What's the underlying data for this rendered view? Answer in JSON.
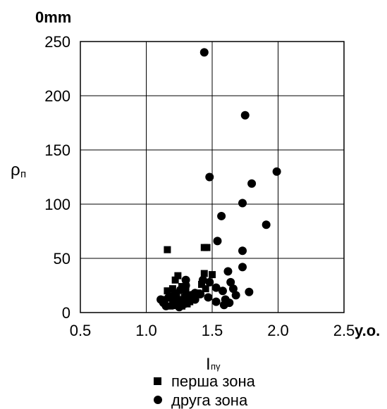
{
  "chart_data": {
    "type": "scatter",
    "top_label": "0mm",
    "x_unit": "y.o.",
    "ylabel_main": "ρ",
    "ylabel_sub": "п",
    "xlabel_main": "I",
    "xlabel_sub": "пγ",
    "xlim": [
      0.5,
      2.5
    ],
    "ylim": [
      0,
      250
    ],
    "x_ticks": [
      "0.5",
      "1.0",
      "1.5",
      "2.0",
      "2.5"
    ],
    "y_ticks": [
      "0",
      "50",
      "100",
      "150",
      "200",
      "250"
    ],
    "grid": true,
    "legend_position": "bottom",
    "series": [
      {
        "name": "перша зона",
        "marker": "square",
        "points": [
          [
            1.16,
            58
          ],
          [
            1.44,
            60
          ],
          [
            1.46,
            60
          ],
          [
            1.44,
            36
          ],
          [
            1.5,
            35
          ],
          [
            1.22,
            30
          ],
          [
            1.24,
            34
          ],
          [
            1.16,
            20
          ],
          [
            1.2,
            22
          ],
          [
            1.23,
            18
          ],
          [
            1.27,
            24
          ],
          [
            1.3,
            20
          ],
          [
            1.18,
            14
          ],
          [
            1.14,
            12
          ],
          [
            1.2,
            10
          ],
          [
            1.25,
            12
          ],
          [
            1.29,
            14
          ],
          [
            1.33,
            10
          ],
          [
            1.36,
            12
          ],
          [
            1.23,
            8
          ],
          [
            1.27,
            6
          ],
          [
            1.18,
            6
          ],
          [
            1.31,
            8
          ],
          [
            1.45,
            22
          ],
          [
            1.42,
            26
          ],
          [
            1.39,
            18
          ],
          [
            1.22,
            16
          ],
          [
            1.29,
            22
          ]
        ]
      },
      {
        "name": "друга зона",
        "marker": "circle",
        "points": [
          [
            1.44,
            240
          ],
          [
            1.75,
            182
          ],
          [
            1.48,
            125
          ],
          [
            1.99,
            130
          ],
          [
            1.8,
            119
          ],
          [
            1.57,
            89
          ],
          [
            1.73,
            101
          ],
          [
            1.91,
            81
          ],
          [
            1.54,
            66
          ],
          [
            1.73,
            57
          ],
          [
            1.73,
            42
          ],
          [
            1.62,
            38
          ],
          [
            1.43,
            30
          ],
          [
            1.48,
            28
          ],
          [
            1.53,
            23
          ],
          [
            1.58,
            20
          ],
          [
            1.64,
            28
          ],
          [
            1.66,
            22
          ],
          [
            1.78,
            19
          ],
          [
            1.68,
            16
          ],
          [
            1.6,
            12
          ],
          [
            1.59,
            7
          ],
          [
            1.63,
            9
          ],
          [
            1.53,
            10
          ],
          [
            1.47,
            14
          ],
          [
            1.41,
            17
          ],
          [
            1.37,
            12
          ],
          [
            1.34,
            16
          ],
          [
            1.3,
            25
          ],
          [
            1.3,
            30
          ],
          [
            1.26,
            21
          ],
          [
            1.21,
            16
          ],
          [
            1.17,
            14
          ],
          [
            1.13,
            9
          ],
          [
            1.11,
            12
          ],
          [
            1.15,
            6
          ],
          [
            1.21,
            7
          ],
          [
            1.25,
            5
          ],
          [
            1.29,
            8
          ],
          [
            1.33,
            11
          ],
          [
            1.37,
            18
          ],
          [
            1.22,
            14
          ]
        ]
      }
    ]
  }
}
